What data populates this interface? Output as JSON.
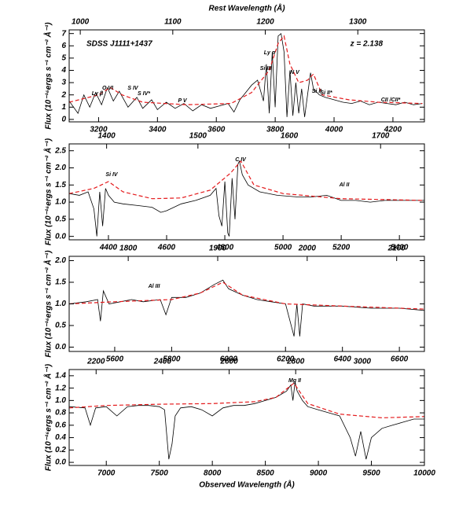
{
  "chart_data": [
    {
      "type": "line",
      "x2label": "Rest Wavelength (Å)",
      "ylabel": "Flux (10⁻¹⁶ergs s⁻¹ cm⁻² Å⁻¹)",
      "xlim": [
        3100,
        4307
      ],
      "xticks": [
        3200,
        3400,
        3600,
        3800,
        4000,
        4200
      ],
      "x2lim": [
        988,
        1372
      ],
      "x2ticks": [
        1000,
        1100,
        1200,
        1300
      ],
      "ylim": [
        -0.2,
        7.3
      ],
      "yticks": [
        0,
        1,
        2,
        3,
        4,
        5,
        6,
        7
      ],
      "annotations": [
        "SDSS J1111+1437",
        "z = 2.138",
        "Ly β",
        "O VI",
        "S IV",
        "S IV*",
        "P V",
        "Si III",
        "Ly α",
        "N V",
        "Si II",
        "Si II*",
        "CII /CII*"
      ],
      "series": [
        {
          "color": "#000000",
          "line_style": "solid",
          "x": [
            3100,
            3130,
            3150,
            3170,
            3190,
            3210,
            3230,
            3250,
            3270,
            3300,
            3330,
            3350,
            3380,
            3400,
            3430,
            3460,
            3490,
            3520,
            3550,
            3580,
            3610,
            3640,
            3660,
            3680,
            3700,
            3720,
            3740,
            3760,
            3770,
            3780,
            3790,
            3800,
            3810,
            3820,
            3830,
            3840,
            3850,
            3860,
            3870,
            3880,
            3890,
            3900,
            3910,
            3920,
            3930,
            3950,
            3970,
            4000,
            4030,
            4060,
            4090,
            4120,
            4150,
            4180,
            4210,
            4240,
            4270,
            4300
          ],
          "values": [
            1.5,
            0.5,
            2.0,
            1.0,
            2.2,
            1.2,
            2.6,
            1.5,
            2.3,
            1.0,
            1.8,
            0.9,
            1.6,
            0.8,
            1.4,
            0.9,
            1.3,
            0.7,
            1.2,
            0.9,
            1.1,
            1.3,
            0.6,
            1.6,
            2.2,
            2.8,
            3.2,
            1.5,
            4.5,
            0.5,
            5.5,
            1.0,
            6.8,
            7.0,
            5.5,
            0.2,
            4.0,
            0.3,
            3.0,
            0.5,
            2.5,
            0.2,
            2.0,
            3.8,
            2.5,
            2.0,
            1.8,
            1.6,
            1.4,
            1.3,
            1.5,
            1.2,
            1.4,
            1.3,
            1.2,
            1.4,
            1.2,
            1.3
          ]
        },
        {
          "color": "#e41a1c",
          "line_style": "dashed",
          "x": [
            3100,
            3200,
            3240,
            3280,
            3350,
            3500,
            3650,
            3720,
            3780,
            3810,
            3830,
            3850,
            3880,
            3910,
            3930,
            3960,
            4050,
            4150,
            4300
          ],
          "values": [
            1.4,
            2.0,
            2.6,
            2.0,
            1.4,
            1.2,
            1.3,
            2.2,
            4.0,
            6.2,
            6.8,
            4.5,
            3.0,
            3.2,
            3.7,
            2.0,
            1.6,
            1.4,
            1.3
          ]
        }
      ]
    },
    {
      "type": "line",
      "ylabel": "Flux (10⁻¹⁶ergs s⁻¹ cm⁻² Å⁻¹)",
      "xlim": [
        4265,
        5486
      ],
      "xticks": [
        4400,
        4600,
        4800,
        5000,
        5200,
        5400
      ],
      "x2lim": [
        1359,
        1748
      ],
      "x2ticks": [
        1400,
        1500,
        1600,
        1700
      ],
      "ylim": [
        -0.1,
        2.7
      ],
      "yticks": [
        {
          "value": 0,
          "label": "0.0"
        },
        {
          "value": 0.5,
          "label": "0.5"
        },
        {
          "value": 1,
          "label": "1.0"
        },
        {
          "value": 1.5,
          "label": "1.5"
        },
        {
          "value": 2,
          "label": "2.0"
        },
        {
          "value": 2.5,
          "label": "2.5"
        }
      ],
      "annotations": [
        "Si IV",
        "C IV",
        "Al II"
      ],
      "series": [
        {
          "color": "#000000",
          "line_style": "solid",
          "x": [
            4265,
            4300,
            4330,
            4350,
            4360,
            4370,
            4380,
            4390,
            4400,
            4420,
            4450,
            4500,
            4550,
            4580,
            4600,
            4650,
            4700,
            4750,
            4770,
            4780,
            4790,
            4800,
            4810,
            4815,
            4825,
            4835,
            4845,
            4850,
            4860,
            4880,
            4920,
            4980,
            5050,
            5100,
            5150,
            5200,
            5250,
            5300,
            5350,
            5400,
            5486
          ],
          "values": [
            1.25,
            1.2,
            1.3,
            0.8,
            0.0,
            1.3,
            0.3,
            1.4,
            1.2,
            1.0,
            0.95,
            0.9,
            0.85,
            0.7,
            0.75,
            0.95,
            1.05,
            1.2,
            1.4,
            0.6,
            0.3,
            1.6,
            0.1,
            0.0,
            1.7,
            0.5,
            2.1,
            2.2,
            1.8,
            1.5,
            1.3,
            1.2,
            1.15,
            1.15,
            1.2,
            1.05,
            1.05,
            1.0,
            1.05,
            1.05,
            1.05
          ]
        },
        {
          "color": "#e41a1c",
          "line_style": "dashed",
          "x": [
            4265,
            4350,
            4400,
            4450,
            4550,
            4650,
            4750,
            4820,
            4855,
            4900,
            5000,
            5200,
            5486
          ],
          "values": [
            1.25,
            1.4,
            1.6,
            1.3,
            1.1,
            1.12,
            1.35,
            1.85,
            2.2,
            1.5,
            1.25,
            1.1,
            1.05
          ]
        }
      ]
    },
    {
      "type": "line",
      "ylabel": "Flux (10⁻¹⁶ergs s⁻¹ cm⁻² Å⁻¹)",
      "xlim": [
        5440,
        6688
      ],
      "xticks": [
        5600,
        5800,
        6000,
        6200,
        6400,
        6600
      ],
      "x2lim": [
        1734,
        2131
      ],
      "x2ticks": [
        1800,
        1900,
        2000,
        2100
      ],
      "ylim": [
        -0.1,
        2.1
      ],
      "yticks": [
        {
          "value": 0,
          "label": "0.0"
        },
        {
          "value": 0.5,
          "label": "0.5"
        },
        {
          "value": 1,
          "label": "1.0"
        },
        {
          "value": 1.5,
          "label": "1.5"
        },
        {
          "value": 2,
          "label": "2.0"
        }
      ],
      "annotations": [
        "Al III"
      ],
      "series": [
        {
          "color": "#000000",
          "line_style": "solid",
          "x": [
            5440,
            5500,
            5540,
            5550,
            5560,
            5580,
            5620,
            5660,
            5700,
            5760,
            5780,
            5800,
            5850,
            5900,
            5950,
            5980,
            6000,
            6050,
            6100,
            6150,
            6200,
            6230,
            6240,
            6250,
            6260,
            6300,
            6400,
            6500,
            6600,
            6688
          ],
          "values": [
            1.0,
            1.05,
            1.1,
            0.6,
            1.3,
            1.0,
            1.05,
            1.1,
            1.05,
            1.1,
            0.75,
            1.15,
            1.15,
            1.25,
            1.45,
            1.55,
            1.35,
            1.2,
            1.1,
            1.05,
            1.0,
            0.25,
            1.0,
            0.25,
            1.0,
            0.95,
            0.95,
            0.9,
            0.9,
            0.85
          ]
        },
        {
          "color": "#e41a1c",
          "line_style": "dashed",
          "x": [
            5440,
            5600,
            5800,
            5900,
            5980,
            6050,
            6200,
            6400,
            6688
          ],
          "values": [
            1.0,
            1.05,
            1.1,
            1.25,
            1.5,
            1.2,
            1.0,
            0.95,
            0.88
          ]
        }
      ]
    },
    {
      "type": "line",
      "xlabel": "Observed Wavelength (Å)",
      "ylabel": "Flux (10⁻¹⁶ergs s⁻¹ cm⁻² Å⁻¹)",
      "xlim": [
        6650,
        10000
      ],
      "xticks": [
        7000,
        7500,
        8000,
        8500,
        9000,
        9500,
        10000
      ],
      "x2lim": [
        2119,
        3187
      ],
      "x2ticks": [
        2200,
        2400,
        2600,
        2800,
        3000
      ],
      "ylim": [
        -0.05,
        1.5
      ],
      "yticks": [
        {
          "value": 0,
          "label": "0.0"
        },
        0.2,
        0.4,
        0.6,
        0.8,
        {
          "value": 1,
          "label": "1.0"
        },
        1.2,
        1.4
      ],
      "annotations": [
        "Mg II"
      ],
      "series": [
        {
          "color": "#000000",
          "line_style": "solid",
          "x": [
            6650,
            6800,
            6850,
            6900,
            7000,
            7100,
            7200,
            7300,
            7400,
            7500,
            7550,
            7590,
            7620,
            7650,
            7700,
            7800,
            7900,
            8000,
            8100,
            8200,
            8300,
            8400,
            8500,
            8600,
            8700,
            8740,
            8760,
            8780,
            8800,
            8850,
            8900,
            9000,
            9100,
            9200,
            9300,
            9350,
            9400,
            9450,
            9500,
            9600,
            9700,
            9800,
            9900,
            10000
          ],
          "values": [
            0.9,
            0.88,
            0.6,
            0.88,
            0.9,
            0.75,
            0.9,
            0.92,
            0.92,
            0.9,
            0.85,
            0.05,
            0.3,
            0.75,
            0.88,
            0.9,
            0.85,
            0.75,
            0.88,
            0.92,
            0.92,
            0.95,
            1.0,
            1.05,
            1.15,
            1.25,
            1.0,
            1.3,
            1.15,
            1.0,
            0.9,
            0.85,
            0.8,
            0.75,
            0.4,
            0.1,
            0.5,
            0.05,
            0.4,
            0.55,
            0.6,
            0.65,
            0.7,
            0.7
          ]
        },
        {
          "color": "#e41a1c",
          "line_style": "dashed",
          "x": [
            6650,
            7000,
            7500,
            8000,
            8400,
            8600,
            8770,
            8900,
            9200,
            9600,
            10000
          ],
          "values": [
            0.88,
            0.92,
            0.94,
            0.95,
            0.98,
            1.05,
            1.28,
            0.95,
            0.78,
            0.72,
            0.74
          ]
        }
      ]
    }
  ]
}
